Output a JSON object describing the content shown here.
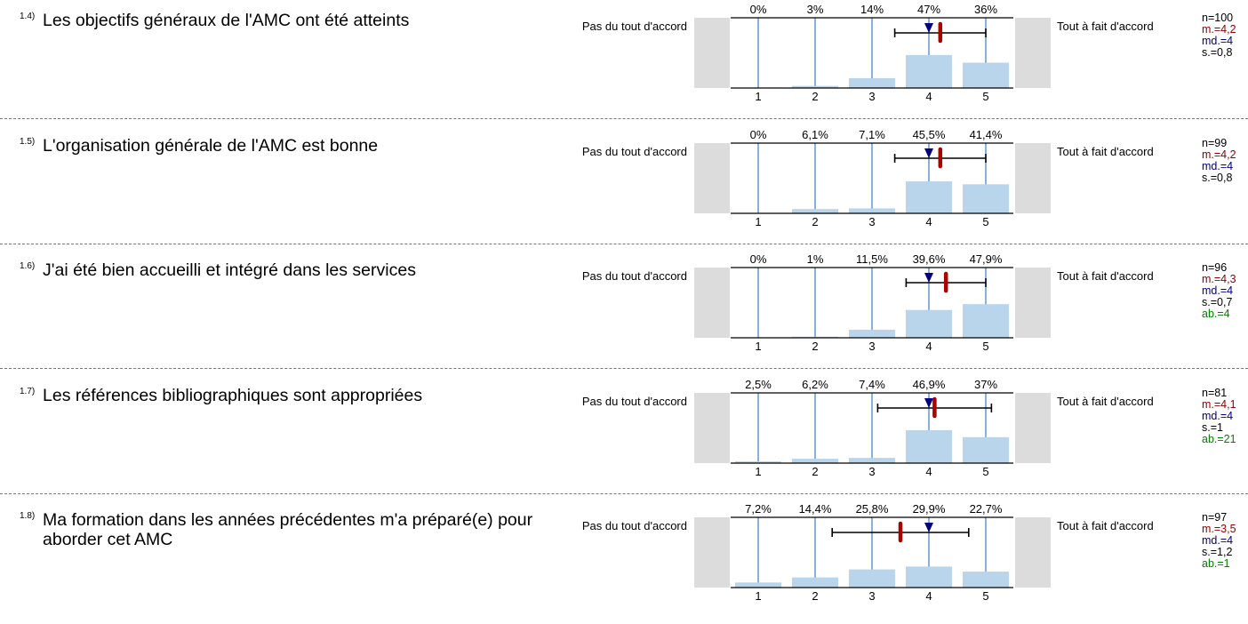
{
  "chart_data": [
    {
      "type": "bar",
      "id": "1.4)",
      "question": "Les objectifs généraux de l'AMC ont été atteints",
      "left_label": "Pas du tout d'accord",
      "right_label": "Tout à fait d'accord",
      "categories": [
        "1",
        "2",
        "3",
        "4",
        "5"
      ],
      "values": [
        0,
        3,
        14,
        47,
        36
      ],
      "pct_labels": [
        "0%",
        "3%",
        "14%",
        "47%",
        "36%"
      ],
      "mean": 4.2,
      "median": 4,
      "sd": 0.8,
      "ylim": [
        0,
        100
      ],
      "stats": {
        "n": "n=100",
        "m": "m.=4,2",
        "md": "md.=4",
        "s": "s.=0,8",
        "ab": ""
      }
    },
    {
      "type": "bar",
      "id": "1.5)",
      "question": "L'organisation générale de l'AMC est bonne",
      "left_label": "Pas du tout d'accord",
      "right_label": "Tout à fait d'accord",
      "categories": [
        "1",
        "2",
        "3",
        "4",
        "5"
      ],
      "values": [
        0,
        6.1,
        7.1,
        45.5,
        41.4
      ],
      "pct_labels": [
        "0%",
        "6,1%",
        "7,1%",
        "45,5%",
        "41,4%"
      ],
      "mean": 4.2,
      "median": 4,
      "sd": 0.8,
      "ylim": [
        0,
        100
      ],
      "stats": {
        "n": "n=99",
        "m": "m.=4,2",
        "md": "md.=4",
        "s": "s.=0,8",
        "ab": ""
      }
    },
    {
      "type": "bar",
      "id": "1.6)",
      "question": "J'ai été bien accueilli et intégré dans les services",
      "left_label": "Pas du tout d'accord",
      "right_label": "Tout à fait d'accord",
      "categories": [
        "1",
        "2",
        "3",
        "4",
        "5"
      ],
      "values": [
        0,
        1,
        11.5,
        39.6,
        47.9
      ],
      "pct_labels": [
        "0%",
        "1%",
        "11,5%",
        "39,6%",
        "47,9%"
      ],
      "mean": 4.3,
      "median": 4,
      "sd": 0.7,
      "ylim": [
        0,
        100
      ],
      "stats": {
        "n": "n=96",
        "m": "m.=4,3",
        "md": "md.=4",
        "s": "s.=0,7",
        "ab": "ab.=4"
      }
    },
    {
      "type": "bar",
      "id": "1.7)",
      "question": "Les références bibliographiques sont appropriées",
      "left_label": "Pas du tout d'accord",
      "right_label": "Tout à fait d'accord",
      "categories": [
        "1",
        "2",
        "3",
        "4",
        "5"
      ],
      "values": [
        2.5,
        6.2,
        7.4,
        46.9,
        37
      ],
      "pct_labels": [
        "2,5%",
        "6,2%",
        "7,4%",
        "46,9%",
        "37%"
      ],
      "mean": 4.1,
      "median": 4,
      "sd": 1,
      "ylim": [
        0,
        100
      ],
      "stats": {
        "n": "n=81",
        "m": "m.=4,1",
        "md": "md.=4",
        "s": "s.=1",
        "ab": "ab.=21"
      }
    },
    {
      "type": "bar",
      "id": "1.8)",
      "question": "Ma formation dans les années précédentes m'a préparé(e) pour aborder cet AMC",
      "left_label": "Pas du tout d'accord",
      "right_label": "Tout à fait d'accord",
      "categories": [
        "1",
        "2",
        "3",
        "4",
        "5"
      ],
      "values": [
        7.2,
        14.4,
        25.8,
        29.9,
        22.7
      ],
      "pct_labels": [
        "7,2%",
        "14,4%",
        "25,8%",
        "29,9%",
        "22,7%"
      ],
      "mean": 3.5,
      "median": 4,
      "sd": 1.2,
      "ylim": [
        0,
        100
      ],
      "stats": {
        "n": "n=97",
        "m": "m.=3,5",
        "md": "md.=4",
        "s": "s.=1,2",
        "ab": "ab.=1"
      }
    }
  ],
  "colors": {
    "bar": "#b8d5ec",
    "gridline": "#3a7dbf",
    "axis": "#000000",
    "mean": "#aa0000",
    "median": "#000080",
    "endcap": "#dcdcdc",
    "abstention": "#008000"
  }
}
